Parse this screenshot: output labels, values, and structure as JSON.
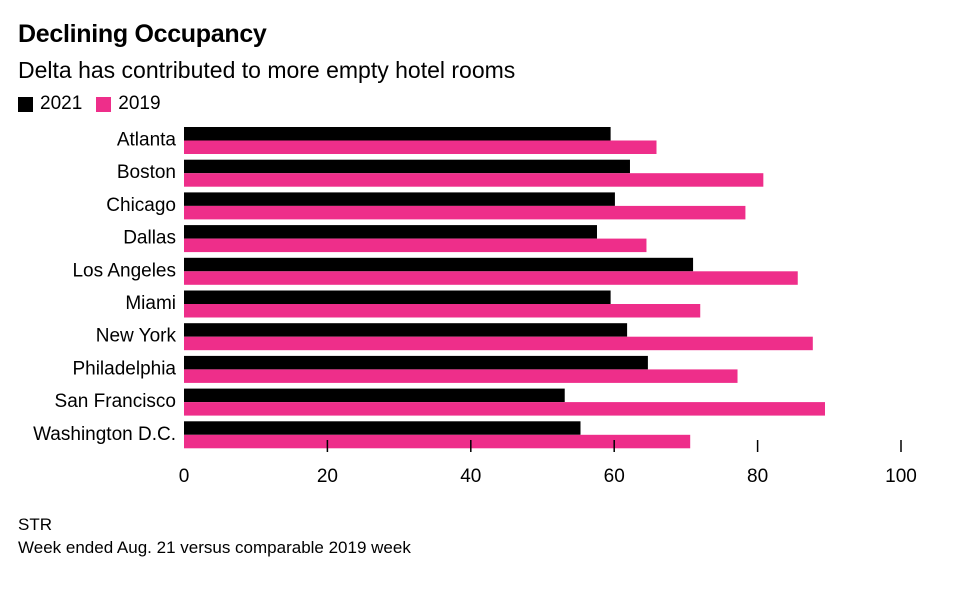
{
  "colors": {
    "2021": "#000000",
    "2019": "#ee2e8a"
  },
  "footer": {
    "source": "STR",
    "note": "Week ended Aug. 21 versus comparable 2019 week"
  },
  "chart_data": {
    "type": "bar",
    "orientation": "horizontal",
    "title": "Declining Occupancy",
    "subtitle": "Delta has contributed to more empty hotel rooms",
    "legend": [
      "2021",
      "2019"
    ],
    "legend_position": "top-left",
    "categories": [
      "Atlanta",
      "Boston",
      "Chicago",
      "Dallas",
      "Los Angeles",
      "Miami",
      "New York",
      "Philadelphia",
      "San Francisco",
      "Washington D.C."
    ],
    "series": [
      {
        "name": "2021",
        "color": "#000000",
        "values": [
          59.5,
          62.2,
          60.1,
          57.6,
          71.0,
          59.5,
          61.8,
          64.7,
          53.1,
          55.3
        ]
      },
      {
        "name": "2019",
        "color": "#ee2e8a",
        "values": [
          65.9,
          80.8,
          78.3,
          64.5,
          85.6,
          72.0,
          87.7,
          77.2,
          89.4,
          70.6
        ]
      }
    ],
    "xlim": [
      0,
      100
    ],
    "xticks": [
      "0",
      "20",
      "40",
      "60",
      "80",
      "100"
    ],
    "xlabel": "",
    "ylabel": "",
    "grid": false
  }
}
